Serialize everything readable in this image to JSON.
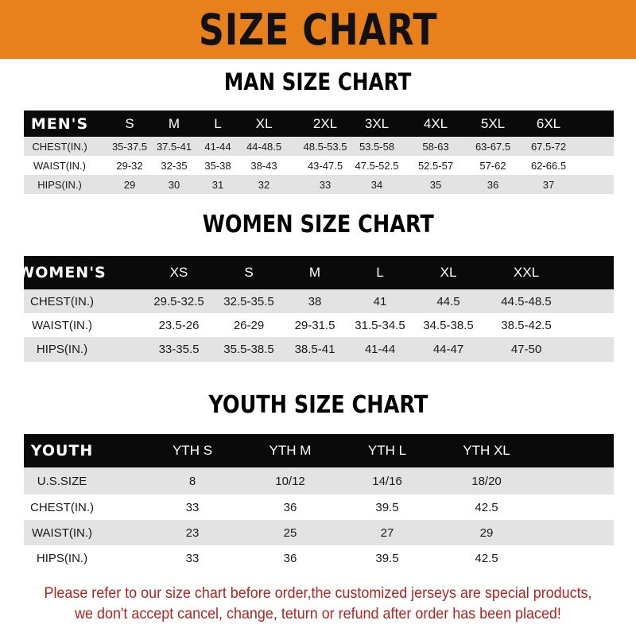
{
  "banner_title": "SIZE CHART",
  "colors": {
    "banner": "#e8801c",
    "header_row": "#0a0a0a",
    "stripe": "#e3e3e3",
    "note": "#b3241f"
  },
  "men": {
    "title": "MAN SIZE CHART",
    "header": [
      "MEN'S",
      "S",
      "M",
      "L",
      "XL",
      "2XL",
      "3XL",
      "4XL",
      "5XL",
      "6XL"
    ],
    "rows": [
      [
        "CHEST(IN.)",
        "35-37.5",
        "37.5-41",
        "41-44",
        "44-48.5",
        "48.5-53.5",
        "53.5-58",
        "58-63",
        "63-67.5",
        "67.5-72"
      ],
      [
        "WAIST(IN.)",
        "29-32",
        "32-35",
        "35-38",
        "38-43",
        "43-47.5",
        "47.5-52.5",
        "52.5-57",
        "57-62",
        "62-66.5"
      ],
      [
        "HIPS(IN.)",
        "29",
        "30",
        "31",
        "32",
        "33",
        "34",
        "35",
        "36",
        "37"
      ]
    ]
  },
  "women": {
    "title": "WOMEN SIZE CHART",
    "header": [
      "WOMEN'S",
      "XS",
      "S",
      "M",
      "L",
      "XL",
      "XXL"
    ],
    "rows": [
      [
        "CHEST(IN.)",
        "29.5-32.5",
        "32.5-35.5",
        "38",
        "41",
        "44.5",
        "44.5-48.5"
      ],
      [
        "WAIST(IN.)",
        "23.5-26",
        "26-29",
        "29-31.5",
        "31.5-34.5",
        "34.5-38.5",
        "38.5-42.5"
      ],
      [
        "HIPS(IN.)",
        "33-35.5",
        "35.5-38.5",
        "38.5-41",
        "41-44",
        "44-47",
        "47-50"
      ]
    ]
  },
  "youth": {
    "title": "YOUTH SIZE CHART",
    "header": [
      "YOUTH",
      "YTH S",
      "YTH M",
      "YTH L",
      "YTH XL"
    ],
    "rows": [
      [
        "U.S.SIZE",
        "8",
        "10/12",
        "14/16",
        "18/20"
      ],
      [
        "CHEST(IN.)",
        "33",
        "36",
        "39.5",
        "42.5"
      ],
      [
        "WAIST(IN.)",
        "23",
        "25",
        "27",
        "29"
      ],
      [
        "HIPS(IN.)",
        "33",
        "36",
        "39.5",
        "42.5"
      ]
    ]
  },
  "note": {
    "line1": "Please refer to our size chart before order,the customized jerseys are special products,",
    "line2": "we don't accept cancel, change, teturn or refund after order has been placed!"
  }
}
